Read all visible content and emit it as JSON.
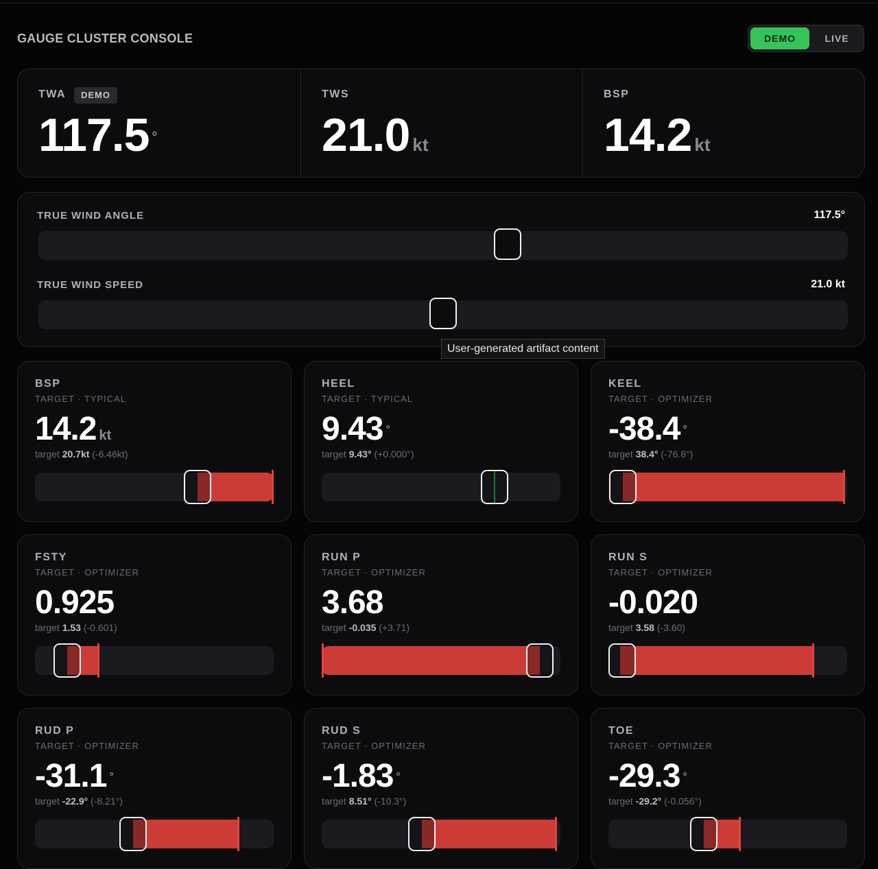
{
  "app": {
    "title": "GAUGE CLUSTER CONSOLE"
  },
  "mode_toggle": {
    "options": [
      "DEMO",
      "LIVE"
    ],
    "selected": "DEMO"
  },
  "colors": {
    "accent_green": "#35c45a",
    "error_red": "#cc3b36",
    "ok_green": "#2fb14e",
    "background": "#050506",
    "card": "#0c0c0e"
  },
  "stats": [
    {
      "label": "TWA",
      "badge": "DEMO",
      "value": "117.5",
      "unit": "°"
    },
    {
      "label": "TWS",
      "value": "21.0",
      "unit": "kt"
    },
    {
      "label": "BSP",
      "value": "14.2",
      "unit": "kt"
    }
  ],
  "sliders": [
    {
      "label": "TRUE WIND ANGLE",
      "display": "117.5°",
      "value": 117.5,
      "position_fraction": 0.58
    },
    {
      "label": "TRUE WIND SPEED",
      "display": "21.0 kt",
      "value": 21.0,
      "position_fraction": 0.5
    }
  ],
  "tooltip": "User-generated artifact content",
  "gauges": [
    {
      "label": "BSP",
      "source": "TARGET · TYPICAL",
      "value": "14.2",
      "unit": "kt",
      "target_prefix": "target",
      "target_value": "20.7kt",
      "target_delta": "(-6.46kt)",
      "current_fraction": 0.68,
      "target_fraction": 1.0,
      "on_target": false
    },
    {
      "label": "HEEL",
      "source": "TARGET · TYPICAL",
      "value": "9.43",
      "unit": "°",
      "target_prefix": "target",
      "target_value": "9.43°",
      "target_delta": "(+0.000°)",
      "current_fraction": 0.725,
      "target_fraction": 0.725,
      "on_target": true
    },
    {
      "label": "KEEL",
      "source": "TARGET · OPTIMIZER",
      "value": "-38.4",
      "unit": "°",
      "target_prefix": "target",
      "target_value": "38.4°",
      "target_delta": "(-76.8°)",
      "current_fraction": 0.06,
      "target_fraction": 0.985,
      "on_target": false
    },
    {
      "label": "FSTY",
      "source": "TARGET · OPTIMIZER",
      "value": "0.925",
      "unit": "",
      "target_prefix": "target",
      "target_value": "1.53",
      "target_delta": "(-0.601)",
      "current_fraction": 0.135,
      "target_fraction": 0.265,
      "on_target": false
    },
    {
      "label": "RUN P",
      "source": "TARGET · OPTIMIZER",
      "value": "3.68",
      "unit": "",
      "target_prefix": "target",
      "target_value": "-0.035",
      "target_delta": "(+3.71)",
      "current_fraction": 0.915,
      "target_fraction": 0.0,
      "on_target": false
    },
    {
      "label": "RUN S",
      "source": "TARGET · OPTIMIZER",
      "value": "-0.020",
      "unit": "",
      "target_prefix": "target",
      "target_value": "3.58",
      "target_delta": "(-3.60)",
      "current_fraction": 0.05,
      "target_fraction": 0.855,
      "on_target": false
    },
    {
      "label": "RUD P",
      "source": "TARGET · OPTIMIZER",
      "value": "-31.1",
      "unit": "°",
      "target_prefix": "target",
      "target_value": "-22.9°",
      "target_delta": "(-8.21°)",
      "current_fraction": 0.41,
      "target_fraction": 0.85,
      "on_target": false
    },
    {
      "label": "RUD S",
      "source": "TARGET · OPTIMIZER",
      "value": "-1.83",
      "unit": "°",
      "target_prefix": "target",
      "target_value": "8.51°",
      "target_delta": "(-10.3°)",
      "current_fraction": 0.42,
      "target_fraction": 0.98,
      "on_target": false
    },
    {
      "label": "TOE",
      "source": "TARGET · OPTIMIZER",
      "value": "-29.3",
      "unit": "°",
      "target_prefix": "target",
      "target_value": "-29.2°",
      "target_delta": "(-0.056°)",
      "current_fraction": 0.4,
      "target_fraction": 0.55,
      "on_target": false
    }
  ]
}
